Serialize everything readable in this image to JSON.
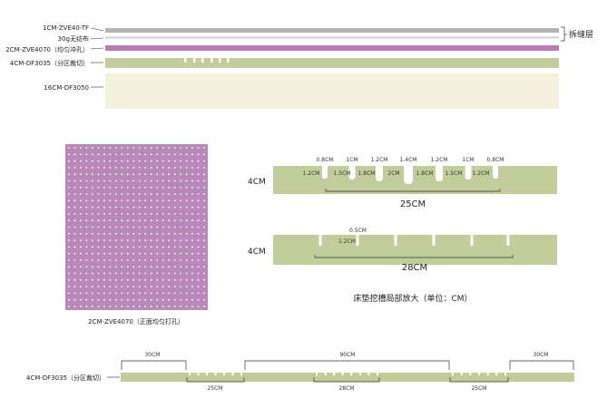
{
  "layers": {
    "items": [
      {
        "label": "1CM-ZVE40-TF",
        "color": "#b4b4b4"
      },
      {
        "label": "30g无纺布",
        "color": "#dcdcdc"
      },
      {
        "label": "2CM-ZVE4070（均匀冲孔）",
        "color": "#b77cb5"
      },
      {
        "label": "4CM-DF3035（分区裁切）",
        "color": "#c3cd9b"
      },
      {
        "label": "16CM-DF3050",
        "color": "#f3f0dc"
      }
    ],
    "bracket_label": "拆缝层"
  },
  "colors": {
    "foam_green": "#c3cd9b",
    "perforated_purple": "#b889b8",
    "base_cream": "#f3f0dc",
    "line": "#222222"
  },
  "perforated_sheet": {
    "caption": "2CM-ZVE4070（正面均匀打孔）",
    "rows": 25,
    "cols": 24
  },
  "detail_top": {
    "thickness_label": "4CM",
    "slot_widths": [
      "0.8CM",
      "1CM",
      "1.2CM",
      "1.4CM",
      "1.2CM",
      "1CM",
      "0.8CM"
    ],
    "gap_widths": [
      "1.2CM",
      "1.5CM",
      "1.8CM",
      "2CM",
      "1.8CM",
      "1.5CM",
      "1.2CM"
    ],
    "span_label": "25CM"
  },
  "detail_bottom": {
    "thickness_label": "4CM",
    "slot_label": "0.5CM",
    "gap_label": "1.2CM",
    "span_label": "28CM"
  },
  "detail_caption": "床垫挖槽局部放大（单位：CM）",
  "bottom_strip": {
    "label": "4CM-DF3035（分区裁切）",
    "top_dims": [
      "30CM",
      "90CM",
      "30CM"
    ],
    "bottom_dims": [
      "25CM",
      "28CM",
      "25CM"
    ]
  }
}
